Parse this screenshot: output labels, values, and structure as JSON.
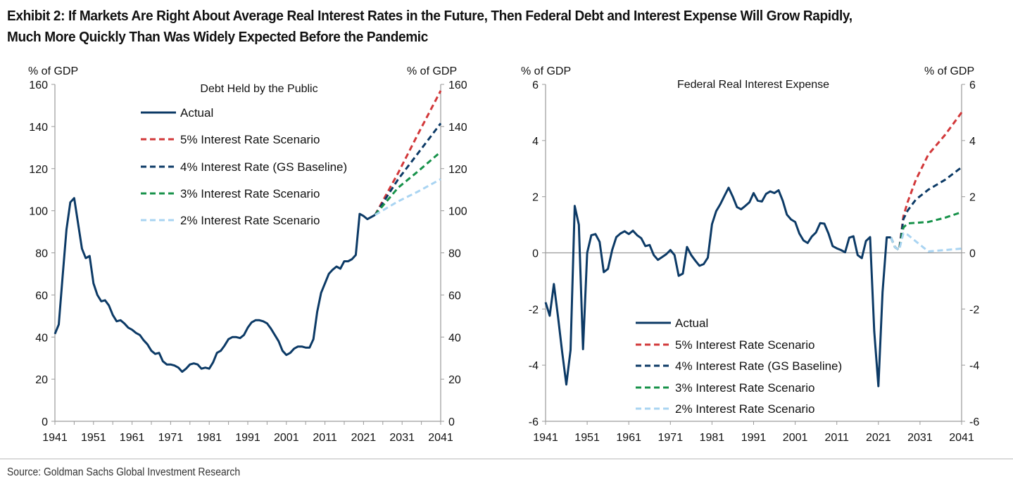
{
  "exhibit": {
    "title_line1": "Exhibit 2: If Markets Are Right About Average Real Interest Rates in the Future, Then Federal Debt and Interest Expense Will Grow Rapidly,",
    "title_line2": "Much More Quickly Than Was Widely Expected Before the Pandemic",
    "source": "Source: Goldman Sachs Global Investment Research"
  },
  "colors": {
    "actual": "#0c3a66",
    "r5": "#d2383a",
    "r4": "#0c3a66",
    "r3": "#17924a",
    "r2": "#a9d4f2",
    "axis": "#9a9a9a"
  },
  "chart_data": [
    {
      "type": "line",
      "title": "Debt Held by the Public",
      "ylabel_left": "% of GDP",
      "ylabel_right": "% of GDP",
      "xlim": [
        1941,
        2041
      ],
      "ylim": [
        0,
        160
      ],
      "yticks": [
        0,
        20,
        40,
        60,
        80,
        100,
        120,
        140,
        160
      ],
      "xticks": [
        1941,
        1951,
        1961,
        1971,
        1981,
        1991,
        2001,
        2011,
        2021,
        2031,
        2041
      ],
      "minor_xtick_step": 5,
      "zero_line": false,
      "legend_placement": "top-center",
      "series": [
        {
          "name": "Actual",
          "style": "solid",
          "color_key": "actual",
          "x": [
            1941,
            1942,
            1943,
            1944,
            1945,
            1946,
            1947,
            1948,
            1949,
            1950,
            1951,
            1952,
            1953,
            1954,
            1955,
            1956,
            1957,
            1958,
            1959,
            1960,
            1961,
            1962,
            1963,
            1964,
            1965,
            1966,
            1967,
            1968,
            1969,
            1970,
            1971,
            1972,
            1973,
            1974,
            1975,
            1976,
            1977,
            1978,
            1979,
            1980,
            1981,
            1982,
            1983,
            1984,
            1985,
            1986,
            1987,
            1988,
            1989,
            1990,
            1991,
            1992,
            1993,
            1994,
            1995,
            1996,
            1997,
            1998,
            1999,
            2000,
            2001,
            2002,
            2003,
            2004,
            2005,
            2006,
            2007,
            2008,
            2009,
            2010,
            2011,
            2012,
            2013,
            2014,
            2015,
            2016,
            2017,
            2018,
            2019,
            2020,
            2021,
            2022,
            2023,
            2024
          ],
          "y": [
            41.5,
            46,
            69,
            91,
            104,
            106,
            94,
            82,
            77.5,
            78.5,
            65.5,
            60,
            57,
            57.5,
            55,
            50.5,
            47.5,
            48,
            46.5,
            44.5,
            43.5,
            42,
            41,
            38.5,
            36.5,
            33.5,
            32,
            32.5,
            28.5,
            27,
            27,
            26.5,
            25.5,
            23.5,
            25,
            27,
            27.5,
            27,
            25,
            25.5,
            25,
            28,
            32.5,
            33.5,
            36,
            39,
            40,
            40,
            39.5,
            41,
            44.5,
            47,
            48,
            48,
            47.5,
            46.5,
            44,
            41,
            38,
            33.5,
            31.5,
            32.5,
            34.5,
            35.5,
            35.5,
            35,
            35,
            39,
            52,
            61,
            65.5,
            70,
            72,
            73.5,
            72.5,
            76,
            76,
            77,
            79,
            98.5,
            97.5,
            96,
            97,
            98
          ]
        },
        {
          "name": "5% Interest Rate Scenario",
          "style": "dashed",
          "color_key": "r5",
          "x": [
            2024,
            2030,
            2035,
            2041
          ],
          "y": [
            98,
            118,
            136,
            157
          ]
        },
        {
          "name": "4% Interest Rate (GS Baseline)",
          "style": "dashed",
          "color_key": "r4",
          "x": [
            2024,
            2030,
            2035,
            2041
          ],
          "y": [
            98,
            115,
            127,
            141.5
          ]
        },
        {
          "name": "3% Interest Rate Scenario",
          "style": "dashed",
          "color_key": "r3",
          "x": [
            2024,
            2030,
            2035,
            2041
          ],
          "y": [
            98,
            111,
            118.5,
            128
          ]
        },
        {
          "name": "2% Interest Rate Scenario",
          "style": "dashed",
          "color_key": "r2",
          "x": [
            2024,
            2030,
            2035,
            2041
          ],
          "y": [
            98,
            104.5,
            109,
            115
          ]
        }
      ]
    },
    {
      "type": "line",
      "title": "Federal Real Interest Expense",
      "ylabel_left": "% of GDP",
      "ylabel_right": "% of GDP",
      "xlim": [
        1941,
        2041
      ],
      "ylim": [
        -6,
        6
      ],
      "yticks": [
        -6,
        -4,
        -2,
        0,
        2,
        4,
        6
      ],
      "xticks": [
        1941,
        1951,
        1961,
        1971,
        1981,
        1991,
        2001,
        2011,
        2021,
        2031,
        2041
      ],
      "minor_xtick_step": 10,
      "zero_line": true,
      "legend_placement": "bottom-center",
      "series": [
        {
          "name": "Actual",
          "style": "solid",
          "color_key": "actual",
          "x": [
            1941,
            1942,
            1943,
            1944,
            1945,
            1946,
            1947,
            1948,
            1949,
            1950,
            1951,
            1952,
            1953,
            1954,
            1955,
            1956,
            1957,
            1958,
            1959,
            1960,
            1961,
            1962,
            1963,
            1964,
            1965,
            1966,
            1967,
            1968,
            1969,
            1970,
            1971,
            1972,
            1973,
            1974,
            1975,
            1976,
            1977,
            1978,
            1979,
            1980,
            1981,
            1982,
            1983,
            1984,
            1985,
            1986,
            1987,
            1988,
            1989,
            1990,
            1991,
            1992,
            1993,
            1994,
            1995,
            1996,
            1997,
            1998,
            1999,
            2000,
            2001,
            2002,
            2003,
            2004,
            2005,
            2006,
            2007,
            2008,
            2009,
            2010,
            2011,
            2012,
            2013,
            2014,
            2015,
            2016,
            2017,
            2018,
            2019,
            2020,
            2021,
            2022,
            2023,
            2024
          ],
          "y": [
            -1.76,
            -2.24,
            -1.11,
            -2.28,
            -3.54,
            -4.69,
            -3.46,
            1.67,
            1.0,
            -3.43,
            0,
            0.63,
            0.67,
            0.39,
            -0.69,
            -0.57,
            0.1,
            0.56,
            0.69,
            0.77,
            0.67,
            0.79,
            0.63,
            0.52,
            0.24,
            0.28,
            -0.08,
            -0.25,
            -0.15,
            -0.05,
            0.1,
            -0.08,
            -0.82,
            -0.74,
            0.21,
            -0.08,
            -0.28,
            -0.46,
            -0.4,
            -0.17,
            1.02,
            1.48,
            1.73,
            2.03,
            2.32,
            2.0,
            1.63,
            1.55,
            1.67,
            1.8,
            2.13,
            1.86,
            1.83,
            2.1,
            2.19,
            2.13,
            2.23,
            1.86,
            1.36,
            1.19,
            1.1,
            0.69,
            0.44,
            0.35,
            0.58,
            0.73,
            1.06,
            1.04,
            0.69,
            0.24,
            0.16,
            0.1,
            0.02,
            0.54,
            0.59,
            -0.08,
            -0.19,
            0.42,
            0.56,
            -2.8,
            -4.75,
            -1.4,
            0.55,
            0.55
          ]
        },
        {
          "name": "5% Interest Rate Scenario",
          "style": "dashed",
          "color_key": "r5",
          "x": [
            2024,
            2025,
            2026,
            2027,
            2028,
            2030,
            2033,
            2037,
            2041
          ],
          "y": [
            0.55,
            0.2,
            0.1,
            1.3,
            1.8,
            2.6,
            3.5,
            4.2,
            5.0
          ]
        },
        {
          "name": "4% Interest Rate (GS Baseline)",
          "style": "dashed",
          "color_key": "r4",
          "x": [
            2024,
            2025,
            2026,
            2027,
            2028,
            2030,
            2033,
            2037,
            2041
          ],
          "y": [
            0.55,
            0.2,
            0.1,
            1.2,
            1.5,
            1.9,
            2.25,
            2.6,
            3.05
          ]
        },
        {
          "name": "3% Interest Rate Scenario",
          "style": "dashed",
          "color_key": "r3",
          "x": [
            2024,
            2025,
            2026,
            2027,
            2028,
            2033,
            2037,
            2041
          ],
          "y": [
            0.55,
            0.2,
            0.1,
            0.9,
            1.05,
            1.1,
            1.25,
            1.45
          ]
        },
        {
          "name": "2% Interest Rate Scenario",
          "style": "dashed",
          "color_key": "r2",
          "x": [
            2024,
            2025,
            2026,
            2027,
            2028,
            2033,
            2041
          ],
          "y": [
            0.55,
            0.2,
            0.1,
            0.7,
            0.65,
            0.05,
            0.15
          ]
        }
      ]
    }
  ]
}
